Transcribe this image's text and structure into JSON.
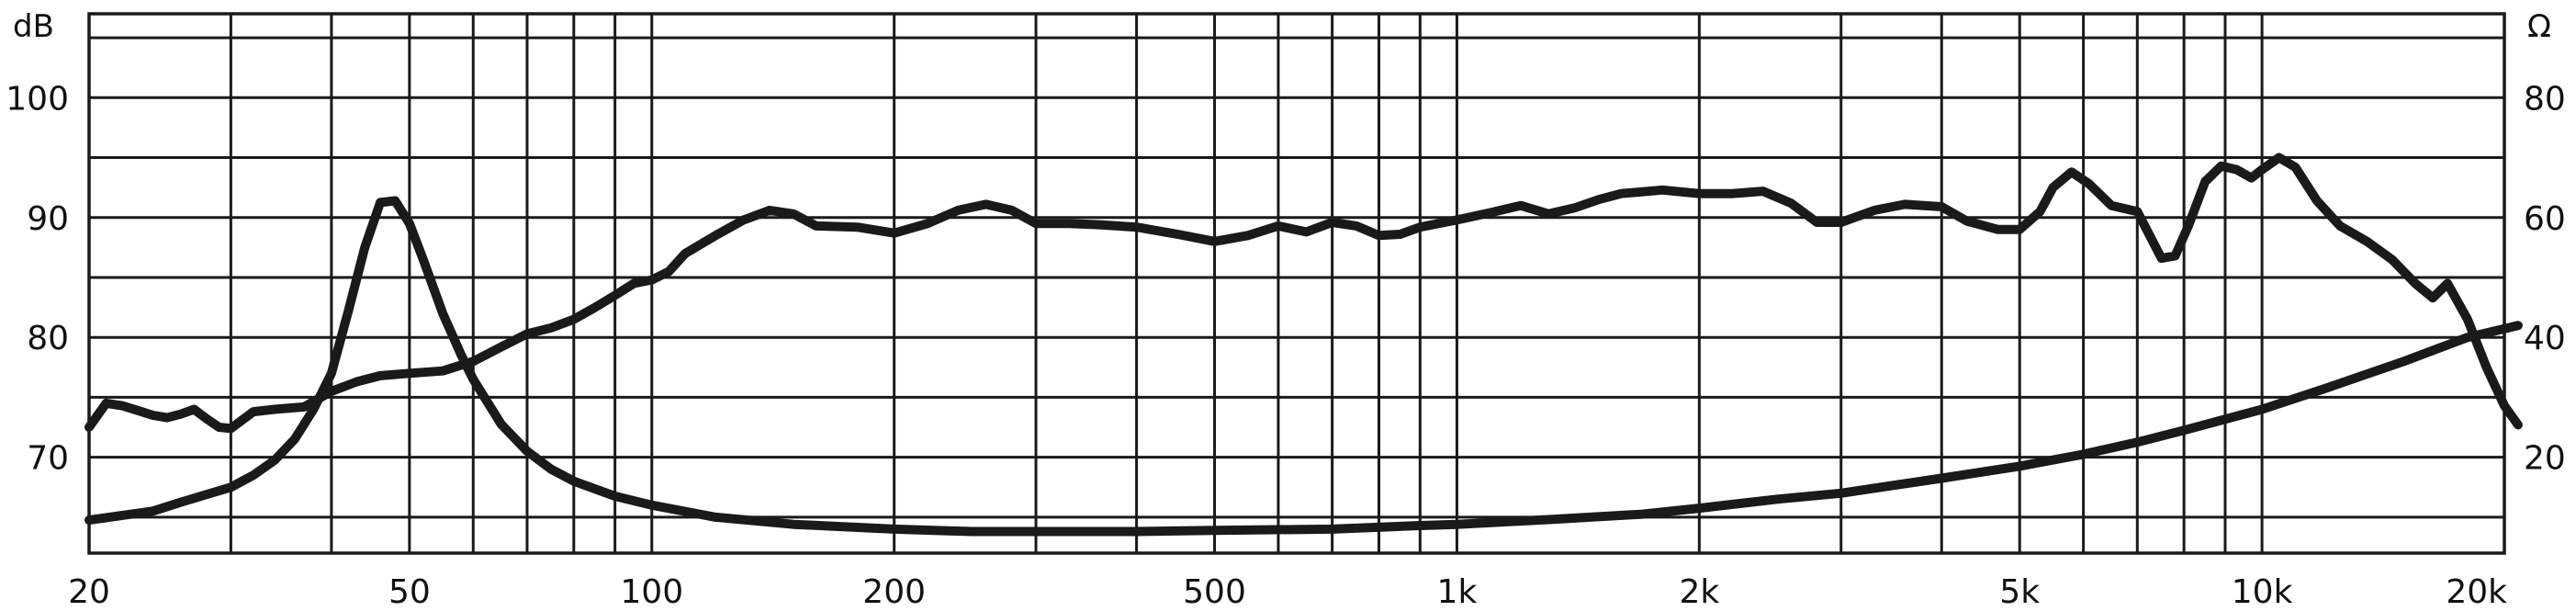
{
  "chart_data": {
    "type": "line",
    "title": "",
    "left_unit": "dB",
    "right_unit": "Ω",
    "x_scale": "log",
    "xlim": [
      20,
      20000
    ],
    "ylim_left": [
      62,
      107
    ],
    "ylim_right": [
      4,
      94
    ],
    "grid": true,
    "x_ticks": [
      {
        "value": 20,
        "label": "20"
      },
      {
        "value": 50,
        "label": "50"
      },
      {
        "value": 100,
        "label": "100"
      },
      {
        "value": 200,
        "label": "200"
      },
      {
        "value": 500,
        "label": "500"
      },
      {
        "value": 1000,
        "label": "1k"
      },
      {
        "value": 2000,
        "label": "2k"
      },
      {
        "value": 5000,
        "label": "5k"
      },
      {
        "value": 10000,
        "label": "10k"
      },
      {
        "value": 20000,
        "label": "20k"
      }
    ],
    "x_gridlines": [
      20,
      30,
      40,
      50,
      60,
      70,
      80,
      90,
      100,
      200,
      300,
      400,
      500,
      600,
      700,
      800,
      900,
      1000,
      2000,
      3000,
      4000,
      5000,
      6000,
      7000,
      8000,
      9000,
      10000,
      20000
    ],
    "y_left_ticks": [
      {
        "value": 70,
        "label": "70"
      },
      {
        "value": 80,
        "label": "80"
      },
      {
        "value": 90,
        "label": "90"
      },
      {
        "value": 100,
        "label": "100"
      }
    ],
    "y_right_ticks": [
      {
        "value": 20,
        "label": "20"
      },
      {
        "value": 40,
        "label": "40"
      },
      {
        "value": 60,
        "label": "60"
      },
      {
        "value": 80,
        "label": "80"
      }
    ],
    "y_gridlines_left": [
      65,
      70,
      75,
      80,
      85,
      90,
      95,
      100,
      105
    ],
    "series": [
      {
        "axis": "left",
        "color": "#1a1a1a",
        "points": [
          [
            20,
            72.5
          ],
          [
            21,
            74.5
          ],
          [
            22,
            74.3
          ],
          [
            23,
            73.9
          ],
          [
            24,
            73.5
          ],
          [
            25,
            73.3
          ],
          [
            26,
            73.6
          ],
          [
            27,
            74.0
          ],
          [
            28,
            73.2
          ],
          [
            29,
            72.5
          ],
          [
            30,
            72.4
          ],
          [
            32,
            73.8
          ],
          [
            34,
            74.0
          ],
          [
            37,
            74.2
          ],
          [
            40,
            75.5
          ],
          [
            43,
            76.3
          ],
          [
            46,
            76.8
          ],
          [
            50,
            77.0
          ],
          [
            55,
            77.2
          ],
          [
            60,
            78.0
          ],
          [
            65,
            79.2
          ],
          [
            70,
            80.3
          ],
          [
            75,
            80.8
          ],
          [
            80,
            81.5
          ],
          [
            85,
            82.5
          ],
          [
            90,
            83.5
          ],
          [
            95,
            84.5
          ],
          [
            100,
            84.8
          ],
          [
            105,
            85.5
          ],
          [
            110,
            87.0
          ],
          [
            120,
            88.5
          ],
          [
            130,
            89.8
          ],
          [
            140,
            90.6
          ],
          [
            150,
            90.3
          ],
          [
            160,
            89.3
          ],
          [
            180,
            89.2
          ],
          [
            200,
            88.7
          ],
          [
            220,
            89.5
          ],
          [
            240,
            90.6
          ],
          [
            260,
            91.1
          ],
          [
            280,
            90.6
          ],
          [
            300,
            89.5
          ],
          [
            330,
            89.5
          ],
          [
            360,
            89.4
          ],
          [
            400,
            89.2
          ],
          [
            450,
            88.6
          ],
          [
            500,
            88.0
          ],
          [
            550,
            88.5
          ],
          [
            600,
            89.3
          ],
          [
            650,
            88.8
          ],
          [
            700,
            89.6
          ],
          [
            750,
            89.3
          ],
          [
            800,
            88.5
          ],
          [
            850,
            88.6
          ],
          [
            900,
            89.2
          ],
          [
            1000,
            89.8
          ],
          [
            1100,
            90.4
          ],
          [
            1200,
            91.0
          ],
          [
            1300,
            90.3
          ],
          [
            1400,
            90.8
          ],
          [
            1500,
            91.5
          ],
          [
            1600,
            92.0
          ],
          [
            1800,
            92.3
          ],
          [
            2000,
            92.0
          ],
          [
            2200,
            92.0
          ],
          [
            2400,
            92.2
          ],
          [
            2600,
            91.2
          ],
          [
            2800,
            89.6
          ],
          [
            3000,
            89.6
          ],
          [
            3300,
            90.6
          ],
          [
            3600,
            91.1
          ],
          [
            4000,
            90.9
          ],
          [
            4300,
            89.7
          ],
          [
            4700,
            89.0
          ],
          [
            5000,
            89.0
          ],
          [
            5300,
            90.5
          ],
          [
            5500,
            92.5
          ],
          [
            5800,
            93.8
          ],
          [
            6100,
            92.8
          ],
          [
            6500,
            91.0
          ],
          [
            7000,
            90.5
          ],
          [
            7500,
            86.6
          ],
          [
            7800,
            86.8
          ],
          [
            8100,
            89.3
          ],
          [
            8500,
            93.0
          ],
          [
            8900,
            94.3
          ],
          [
            9300,
            94.0
          ],
          [
            9700,
            93.3
          ],
          [
            10000,
            94.0
          ],
          [
            10500,
            95.0
          ],
          [
            11000,
            94.2
          ],
          [
            11700,
            91.4
          ],
          [
            12500,
            89.3
          ],
          [
            13500,
            88.0
          ],
          [
            14500,
            86.5
          ],
          [
            15500,
            84.5
          ],
          [
            16300,
            83.3
          ],
          [
            17000,
            84.5
          ],
          [
            18000,
            81.5
          ],
          [
            19000,
            77.5
          ],
          [
            20000,
            74.3
          ],
          [
            20800,
            72.7
          ]
        ]
      },
      {
        "axis": "right",
        "color": "#1a1a1a",
        "points": [
          [
            20,
            9.5
          ],
          [
            22,
            10.3
          ],
          [
            24,
            11.0
          ],
          [
            26,
            12.5
          ],
          [
            28,
            13.8
          ],
          [
            30,
            15.0
          ],
          [
            32,
            17.0
          ],
          [
            34,
            19.5
          ],
          [
            36,
            23.0
          ],
          [
            38,
            28.0
          ],
          [
            40,
            34.0
          ],
          [
            42,
            44.5
          ],
          [
            44,
            55.0
          ],
          [
            46,
            62.5
          ],
          [
            48,
            62.8
          ],
          [
            50,
            59.0
          ],
          [
            52,
            53.0
          ],
          [
            55,
            44.0
          ],
          [
            58,
            37.0
          ],
          [
            60,
            33.0
          ],
          [
            65,
            25.5
          ],
          [
            70,
            21.0
          ],
          [
            75,
            18.0
          ],
          [
            80,
            16.0
          ],
          [
            90,
            13.5
          ],
          [
            100,
            12.0
          ],
          [
            120,
            10.0
          ],
          [
            150,
            8.8
          ],
          [
            200,
            8.0
          ],
          [
            250,
            7.6
          ],
          [
            300,
            7.6
          ],
          [
            400,
            7.6
          ],
          [
            500,
            7.8
          ],
          [
            700,
            8.0
          ],
          [
            900,
            8.6
          ],
          [
            1000,
            8.8
          ],
          [
            1300,
            9.6
          ],
          [
            1700,
            10.5
          ],
          [
            2000,
            11.5
          ],
          [
            2500,
            13.0
          ],
          [
            3000,
            14.0
          ],
          [
            4000,
            16.5
          ],
          [
            5000,
            18.5
          ],
          [
            6000,
            20.5
          ],
          [
            7000,
            22.5
          ],
          [
            8000,
            24.5
          ],
          [
            10000,
            28.0
          ],
          [
            12000,
            31.5
          ],
          [
            15000,
            36.0
          ],
          [
            18000,
            40.0
          ],
          [
            20800,
            42.0
          ]
        ]
      }
    ]
  }
}
